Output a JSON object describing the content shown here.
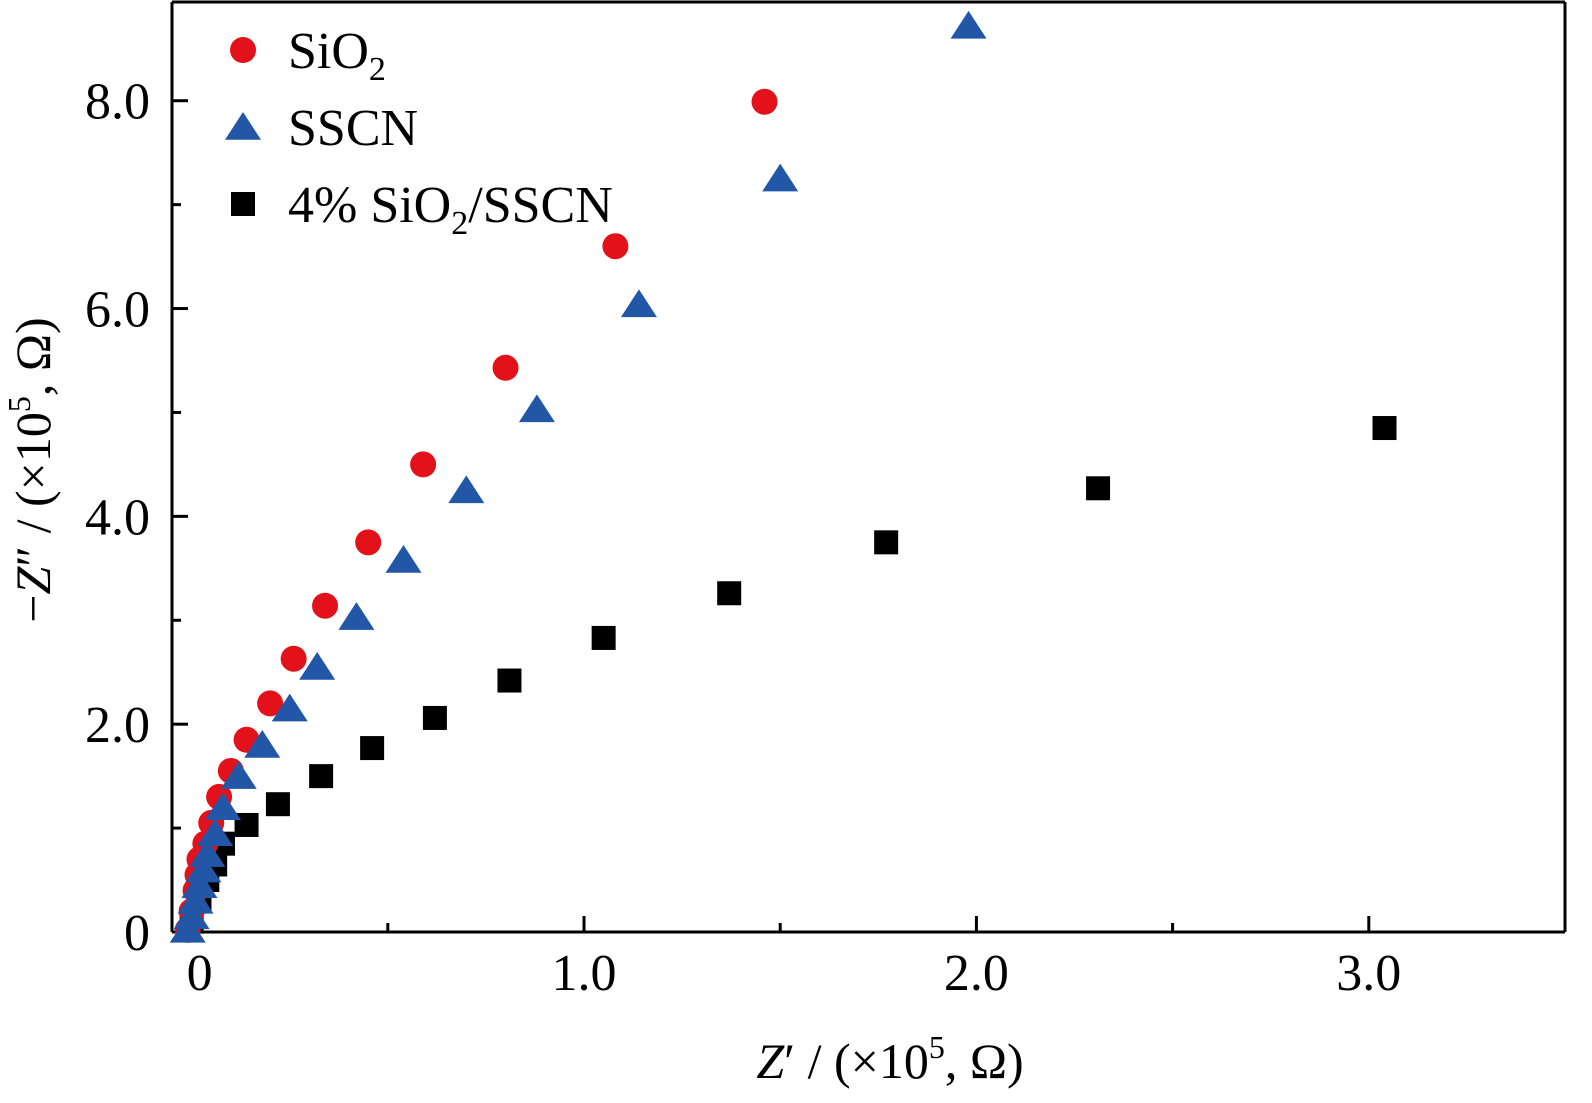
{
  "chart_data": {
    "type": "scatter",
    "title": "",
    "xlabel": {
      "pre": "Z′ / (×10",
      "sup": "5",
      "post": ", Ω)"
    },
    "ylabel": {
      "pre": "−Z″ / (×10",
      "sup": "5",
      "post": ", Ω)"
    },
    "xlim": [
      -0.05,
      3.5
    ],
    "ylim": [
      0,
      8.95
    ],
    "x_ticks": [
      {
        "value": 0,
        "label": "0"
      },
      {
        "value": 1,
        "label": "1.0"
      },
      {
        "value": 2,
        "label": "2.0"
      },
      {
        "value": 3,
        "label": "3.0"
      }
    ],
    "x_minor_ticks": [
      0.5,
      1.5,
      2.5
    ],
    "y_ticks": [
      {
        "value": 0,
        "label": "0"
      },
      {
        "value": 2,
        "label": "2.0"
      },
      {
        "value": 4,
        "label": "4.0"
      },
      {
        "value": 6,
        "label": "6.0"
      },
      {
        "value": 8,
        "label": "8.0"
      }
    ],
    "y_minor_ticks": [
      1,
      3,
      5,
      7
    ],
    "grid": false,
    "legend_position": "top-left",
    "series": [
      {
        "name": "SiO",
        "name_sub": "2",
        "marker": "circle",
        "color": "#e3121a",
        "points": [
          [
            -0.01,
            0.02
          ],
          [
            0.0,
            0.2
          ],
          [
            0.01,
            0.4
          ],
          [
            0.015,
            0.55
          ],
          [
            0.02,
            0.7
          ],
          [
            0.035,
            0.85
          ],
          [
            0.05,
            1.05
          ],
          [
            0.07,
            1.3
          ],
          [
            0.1,
            1.55
          ],
          [
            0.14,
            1.85
          ],
          [
            0.2,
            2.2
          ],
          [
            0.26,
            2.63
          ],
          [
            0.34,
            3.14
          ],
          [
            0.45,
            3.75
          ],
          [
            0.59,
            4.5
          ],
          [
            0.8,
            5.43
          ],
          [
            1.08,
            6.6
          ],
          [
            1.46,
            7.99
          ]
        ]
      },
      {
        "name": "SSCN",
        "marker": "triangle",
        "color": "#2256a6",
        "points": [
          [
            -0.01,
            0.02
          ],
          [
            0.0,
            0.15
          ],
          [
            0.01,
            0.3
          ],
          [
            0.02,
            0.45
          ],
          [
            0.03,
            0.6
          ],
          [
            0.04,
            0.75
          ],
          [
            0.06,
            0.95
          ],
          [
            0.08,
            1.2
          ],
          [
            0.12,
            1.5
          ],
          [
            0.18,
            1.8
          ],
          [
            0.25,
            2.15
          ],
          [
            0.32,
            2.55
          ],
          [
            0.42,
            3.03
          ],
          [
            0.54,
            3.58
          ],
          [
            0.7,
            4.25
          ],
          [
            0.88,
            5.03
          ],
          [
            1.14,
            6.04
          ],
          [
            1.5,
            7.25
          ],
          [
            1.98,
            8.72
          ]
        ]
      },
      {
        "name": "4% SiO",
        "name_sub": "2",
        "name_post": "/SSCN",
        "marker": "square",
        "color": "#000000",
        "points": [
          [
            0.0,
            0.1
          ],
          [
            0.02,
            0.3
          ],
          [
            0.04,
            0.5
          ],
          [
            0.06,
            0.65
          ],
          [
            0.08,
            0.85
          ],
          [
            0.14,
            1.03
          ],
          [
            0.22,
            1.23
          ],
          [
            0.33,
            1.5
          ],
          [
            0.46,
            1.77
          ],
          [
            0.62,
            2.06
          ],
          [
            0.81,
            2.42
          ],
          [
            1.05,
            2.83
          ],
          [
            1.37,
            3.26
          ],
          [
            1.77,
            3.75
          ],
          [
            2.31,
            4.27
          ],
          [
            3.04,
            4.85
          ]
        ]
      }
    ]
  }
}
